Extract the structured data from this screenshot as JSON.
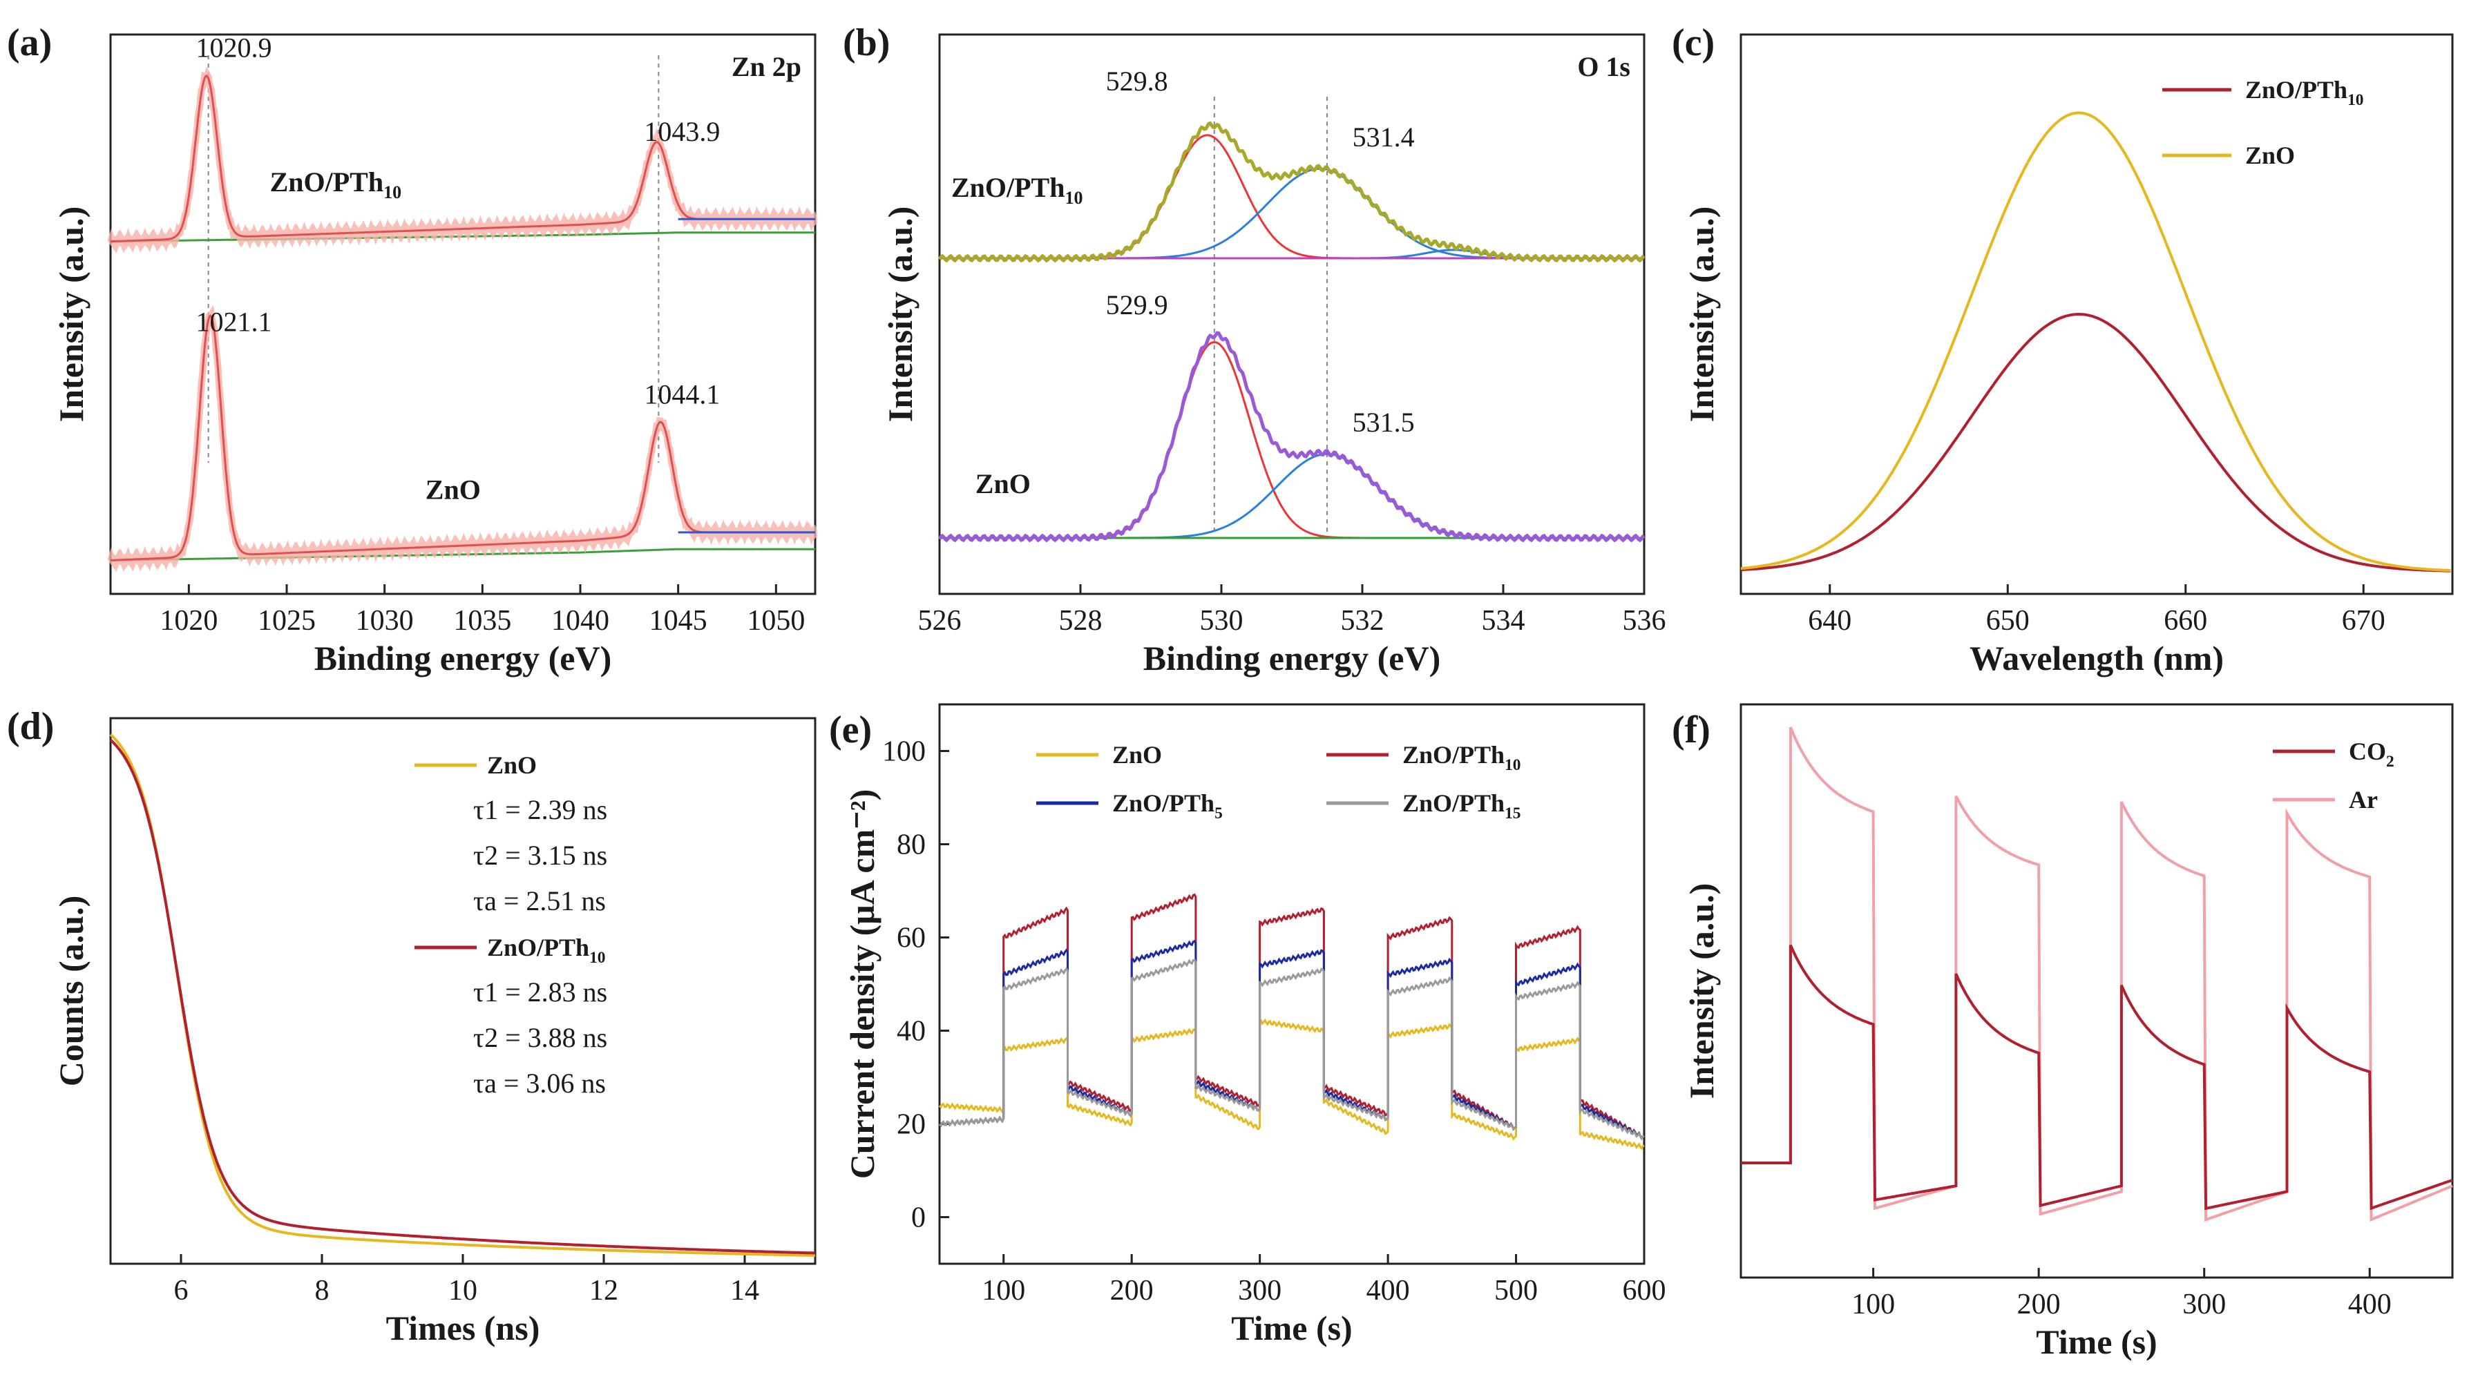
{
  "chart_data": [
    {
      "panel": "(a)",
      "type": "line",
      "title": "Zn 2p",
      "xlabel": "Binding energy (eV)",
      "ylabel": "Intensity (a.u.)",
      "xlim": [
        1016,
        1052
      ],
      "ylim": [
        0,
        1
      ],
      "xticks": [
        1020,
        1025,
        1030,
        1035,
        1040,
        1045,
        1050
      ],
      "reversed_x": false,
      "y_tick_labels": false,
      "series": [
        {
          "sample": "ZnO/PTh10",
          "color": "#f08a8a",
          "offset": 0.63,
          "peaks": [
            {
              "x": 1020.9,
              "h": 0.29,
              "w": 0.55
            },
            {
              "x": 1043.9,
              "h": 0.14,
              "w": 0.6
            }
          ],
          "background": [
            [
              1016,
              0.0
            ],
            [
              1040,
              0.03
            ],
            [
              1045,
              0.04
            ],
            [
              1052,
              0.04
            ]
          ]
        },
        {
          "sample": "ZnO",
          "color": "#f08a8a",
          "offset": 0.06,
          "peaks": [
            {
              "x": 1021.1,
              "h": 0.43,
              "w": 0.55
            },
            {
              "x": 1044.1,
              "h": 0.2,
              "w": 0.6
            }
          ],
          "background": [
            [
              1016,
              0.0
            ],
            [
              1040,
              0.035
            ],
            [
              1045,
              0.05
            ],
            [
              1052,
              0.05
            ]
          ]
        }
      ],
      "labels": [
        {
          "text": "ZnO/PTh",
          "sub": "10",
          "x": 1027.5,
          "y": 0.72
        },
        {
          "text": "ZnO",
          "sub": "",
          "x": 1033.5,
          "y": 0.17
        }
      ],
      "annotations": [
        {
          "text": "1020.9",
          "x": 1022.3,
          "y": 0.96
        },
        {
          "text": "1043.9",
          "x": 1045.2,
          "y": 0.81
        },
        {
          "text": "1021.1",
          "x": 1022.3,
          "y": 0.47
        },
        {
          "text": "1044.1",
          "x": 1045.2,
          "y": 0.34
        }
      ],
      "guides": [
        1021.0,
        1044.0
      ]
    },
    {
      "panel": "(b)",
      "type": "line",
      "title": "O 1s",
      "xlabel": "Binding energy (eV)",
      "ylabel": "Intensity (a.u.)",
      "xlim": [
        526,
        536
      ],
      "ylim": [
        0,
        1
      ],
      "xticks": [
        526,
        528,
        530,
        532,
        534,
        536
      ],
      "y_tick_labels": false,
      "series": [
        {
          "sample": "ZnO/PTh10",
          "offset": 0.6,
          "envelope_color": "#a8a82a",
          "components": [
            {
              "x": 529.8,
              "h": 0.22,
              "w": 0.5,
              "color": "#ee3434"
            },
            {
              "x": 531.4,
              "h": 0.16,
              "w": 0.75,
              "color": "#2a7fe0"
            },
            {
              "x": 533.3,
              "h": 0.015,
              "w": 0.4,
              "color": "#2a7fe0"
            }
          ],
          "baseline_color": "#c040c0"
        },
        {
          "sample": "ZnO",
          "offset": 0.1,
          "envelope_color": "#9a5ad8",
          "components": [
            {
              "x": 529.9,
              "h": 0.35,
              "w": 0.5,
              "color": "#ee3434"
            },
            {
              "x": 531.5,
              "h": 0.15,
              "w": 0.72,
              "color": "#2a7fe0"
            }
          ],
          "baseline_color": "#2ca02c"
        }
      ],
      "labels": [
        {
          "text": "ZnO/PTh",
          "sub": "10",
          "x": 527.1,
          "y": 0.71
        },
        {
          "text": "ZnO",
          "sub": "",
          "x": 526.9,
          "y": 0.18
        }
      ],
      "annotations": [
        {
          "text": "529.8",
          "x": 528.8,
          "y": 0.9
        },
        {
          "text": "531.4",
          "x": 532.3,
          "y": 0.8
        },
        {
          "text": "529.9",
          "x": 528.8,
          "y": 0.5
        },
        {
          "text": "531.5",
          "x": 532.3,
          "y": 0.29
        }
      ],
      "guides": [
        529.9,
        531.5
      ]
    },
    {
      "panel": "(c)",
      "type": "line",
      "xlabel": "Wavelength (nm)",
      "ylabel": "Intensity (a.u.)",
      "xlim": [
        635,
        675
      ],
      "ylim": [
        0,
        1
      ],
      "xticks": [
        640,
        650,
        660,
        670
      ],
      "y_tick_labels": false,
      "legend_position": "top-right",
      "series": [
        {
          "name": "ZnO/PTh10",
          "name_main": "ZnO/PTh",
          "name_sub": "10",
          "color": "#b22030",
          "center": 654,
          "sigma": 6.0,
          "peak": 0.46,
          "base": 0.04
        },
        {
          "name": "ZnO",
          "name_main": "ZnO",
          "name_sub": "",
          "color": "#e6b820",
          "center": 654,
          "sigma": 6.0,
          "peak": 0.82,
          "base": 0.04
        }
      ]
    },
    {
      "panel": "(d)",
      "type": "line",
      "xlabel": "Times (ns)",
      "ylabel": "Counts (a.u.)",
      "xlim": [
        5,
        15
      ],
      "ylim": [
        0,
        1
      ],
      "xticks": [
        6,
        8,
        10,
        12,
        14
      ],
      "y_tick_labels": false,
      "series": [
        {
          "name": "ZnO",
          "color": "#e6b820",
          "tau": [
            2.39,
            3.15
          ],
          "tau_a": 2.51,
          "start": 0.97,
          "tail": 0.05
        },
        {
          "name": "ZnO/PTh10",
          "color": "#b22030",
          "tau": [
            2.83,
            3.88
          ],
          "tau_a": 3.06,
          "start": 0.95,
          "tail": 0.065
        }
      ],
      "legend": [
        {
          "name_main": "ZnO",
          "name_sub": "",
          "color": "#e6b820",
          "lines": [
            "τ1 = 2.39 ns",
            "τ2 = 3.15 ns",
            "τa = 2.51 ns"
          ]
        },
        {
          "name_main": "ZnO/PTh",
          "name_sub": "10",
          "color": "#b22030",
          "lines": [
            "τ1 = 2.83 ns",
            "τ2 = 3.88 ns",
            "τa = 3.06 ns"
          ]
        }
      ]
    },
    {
      "panel": "(e)",
      "type": "line",
      "xlabel": "Time (s)",
      "ylabel": "Current density (μA cm⁻²)",
      "xlim": [
        50,
        600
      ],
      "ylim": [
        -10,
        110
      ],
      "xticks": [
        100,
        200,
        300,
        400,
        500,
        600
      ],
      "yticks": [
        0,
        20,
        40,
        60,
        80,
        100
      ],
      "legend_position": "top",
      "on_intervals": [
        [
          100,
          150
        ],
        [
          200,
          250
        ],
        [
          300,
          350
        ],
        [
          400,
          450
        ],
        [
          500,
          550
        ]
      ],
      "series": [
        {
          "name": "ZnO",
          "name_main": "ZnO",
          "name_sub": "",
          "color": "#e6b820",
          "on_levels": [
            [
              36,
              38
            ],
            [
              38,
              40
            ],
            [
              42,
              40
            ],
            [
              39,
              41
            ],
            [
              36,
              38
            ]
          ],
          "off_levels": [
            [
              24,
              23
            ],
            [
              24,
              20
            ],
            [
              26,
              19
            ],
            [
              25,
              18
            ],
            [
              22,
              17
            ],
            [
              18,
              15
            ]
          ]
        },
        {
          "name": "ZnO/PTh10",
          "name_main": "ZnO/PTh",
          "name_sub": "10",
          "color": "#b22030",
          "on_levels": [
            [
              60,
              66
            ],
            [
              64,
              69
            ],
            [
              63,
              66
            ],
            [
              60,
              64
            ],
            [
              58,
              62
            ]
          ],
          "off_levels": [
            [
              20,
              21
            ],
            [
              29,
              23
            ],
            [
              30,
              24
            ],
            [
              28,
              22
            ],
            [
              27,
              19
            ],
            [
              25,
              17
            ]
          ]
        },
        {
          "name": "ZnO/PTh5",
          "name_main": "ZnO/PTh",
          "name_sub": "5",
          "color": "#1c2aa0",
          "on_levels": [
            [
              52,
              57
            ],
            [
              55,
              59
            ],
            [
              54,
              57
            ],
            [
              52,
              55
            ],
            [
              50,
              54
            ]
          ],
          "off_levels": [
            [
              20,
              21
            ],
            [
              28,
              22
            ],
            [
              29,
              23
            ],
            [
              27,
              21
            ],
            [
              26,
              19
            ],
            [
              24,
              17
            ]
          ]
        },
        {
          "name": "ZnO/PTh15",
          "name_main": "ZnO/PTh",
          "name_sub": "15",
          "color": "#9a9a9a",
          "on_levels": [
            [
              49,
              53
            ],
            [
              51,
              55
            ],
            [
              50,
              53
            ],
            [
              48,
              51
            ],
            [
              47,
              50
            ]
          ],
          "off_levels": [
            [
              20,
              21
            ],
            [
              27,
              22
            ],
            [
              28,
              23
            ],
            [
              26,
              21
            ],
            [
              25,
              19
            ],
            [
              23,
              17
            ]
          ]
        }
      ]
    },
    {
      "panel": "(f)",
      "type": "line",
      "xlabel": "Time (s)",
      "ylabel": "Intensity (a.u.)",
      "xlim": [
        20,
        450
      ],
      "ylim": [
        0,
        1
      ],
      "xticks": [
        100,
        200,
        300,
        400
      ],
      "y_tick_labels": false,
      "legend_position": "top-right",
      "on_intervals": [
        [
          50,
          100
        ],
        [
          150,
          200
        ],
        [
          250,
          300
        ],
        [
          350,
          400
        ]
      ],
      "series": [
        {
          "name": "CO2",
          "name_main": "CO",
          "name_sub": "2",
          "color": "#b22030",
          "base_start": 0.2,
          "peaks": [
            0.58,
            0.53,
            0.51,
            0.47
          ],
          "ends": [
            0.45,
            0.4,
            0.38,
            0.37
          ],
          "lows": [
            0.135,
            0.125,
            0.12,
            0.12
          ],
          "recover": [
            0.16,
            0.16,
            0.15,
            0.17
          ]
        },
        {
          "name": "Ar",
          "name_main": "Ar",
          "name_sub": "",
          "color": "#f2a0a8",
          "base_start": 0.2,
          "peaks": [
            0.96,
            0.84,
            0.83,
            0.81
          ],
          "ends": [
            0.82,
            0.73,
            0.71,
            0.71
          ],
          "lows": [
            0.12,
            0.11,
            0.1,
            0.1
          ],
          "recover": [
            0.16,
            0.15,
            0.15,
            0.16
          ]
        }
      ]
    }
  ]
}
